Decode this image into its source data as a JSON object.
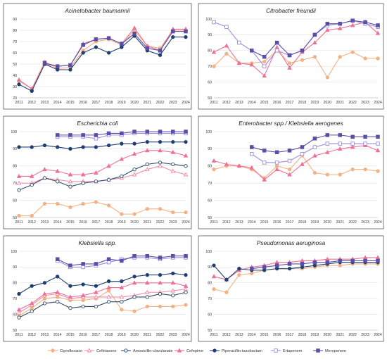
{
  "legend": [
    {
      "name": "Ciprofloxacin",
      "color": "#f4b183",
      "marker": "circle",
      "filled": true
    },
    {
      "name": "Ceftriaxone",
      "color": "#f08aa8",
      "marker": "triangle",
      "filled": false
    },
    {
      "name": "Amoxicillin-clavulanate",
      "color": "#2e4b6e",
      "marker": "circle",
      "filled": false
    },
    {
      "name": "Cefepime",
      "color": "#ef6f95",
      "marker": "triangle",
      "filled": true
    },
    {
      "name": "Piperacillin-tazobactam",
      "color": "#1f3f73",
      "marker": "circle",
      "filled": true
    },
    {
      "name": "Ertapenem",
      "color": "#9c8ce0",
      "marker": "square",
      "filled": false
    },
    {
      "name": "Meropenem",
      "color": "#5a4fa8",
      "marker": "square",
      "filled": true
    }
  ],
  "chart_data": [
    {
      "type": "line",
      "title": "Acinetobacter baumannii",
      "x": [
        2011,
        2012,
        2013,
        2014,
        2015,
        2016,
        2017,
        2018,
        2019,
        2020,
        2021,
        2022,
        2023,
        2024
      ],
      "ylim": [
        20,
        90
      ],
      "yticks": [
        20,
        30,
        40,
        50,
        60,
        70,
        80,
        90
      ],
      "series": [
        {
          "name": "Ciprofloxacin",
          "values": [
            35,
            28,
            52,
            46,
            47,
            62,
            70,
            72,
            67,
            80,
            66,
            64,
            80,
            80
          ]
        },
        {
          "name": "Ceftriaxone",
          "values": [
            null,
            null,
            null,
            null,
            null,
            null,
            null,
            null,
            null,
            null,
            null,
            null,
            null,
            null
          ]
        },
        {
          "name": "Amoxicillin-clavulanate",
          "values": [
            null,
            null,
            null,
            null,
            null,
            null,
            null,
            null,
            null,
            null,
            null,
            null,
            null,
            null
          ]
        },
        {
          "name": "Cefepime",
          "values": [
            36,
            28,
            50,
            48,
            49,
            68,
            72,
            73,
            68,
            82,
            66,
            62,
            81,
            81
          ]
        },
        {
          "name": "Piperacillin-tazobactam",
          "values": [
            32,
            26,
            50,
            45,
            45,
            60,
            65,
            60,
            65,
            75,
            62,
            58,
            74,
            74
          ]
        },
        {
          "name": "Ertapenem",
          "values": [
            null,
            null,
            null,
            null,
            null,
            null,
            null,
            null,
            null,
            null,
            null,
            null,
            null,
            null
          ]
        },
        {
          "name": "Meropenem",
          "values": [
            null,
            null,
            51,
            48,
            49,
            67,
            72,
            73,
            68,
            77,
            64,
            62,
            79,
            79
          ]
        }
      ]
    },
    {
      "type": "line",
      "title": "Citrobacter freundii",
      "x": [
        2011,
        2012,
        2013,
        2014,
        2015,
        2016,
        2017,
        2018,
        2019,
        2020,
        2021,
        2022,
        2023,
        2024
      ],
      "ylim": [
        50,
        100
      ],
      "yticks": [
        50,
        60,
        70,
        80,
        90,
        100
      ],
      "series": [
        {
          "name": "Ciprofloxacin",
          "values": [
            70,
            78,
            72,
            72,
            73,
            80,
            72,
            74,
            76,
            63,
            76,
            79,
            75,
            75
          ]
        },
        {
          "name": "Ceftriaxone",
          "values": [
            null,
            null,
            null,
            null,
            null,
            null,
            null,
            null,
            null,
            null,
            null,
            null,
            null,
            null
          ]
        },
        {
          "name": "Amoxicillin-clavulanate",
          "values": [
            null,
            null,
            null,
            null,
            null,
            null,
            null,
            null,
            null,
            null,
            null,
            null,
            null,
            null
          ]
        },
        {
          "name": "Cefepime",
          "values": [
            79,
            83,
            72,
            71,
            64,
            82,
            69,
            79,
            85,
            93,
            94,
            96,
            98,
            91
          ]
        },
        {
          "name": "Piperacillin-tazobactam",
          "values": [
            null,
            null,
            null,
            null,
            null,
            null,
            null,
            null,
            null,
            null,
            null,
            null,
            null,
            null
          ]
        },
        {
          "name": "Ertapenem",
          "values": [
            98,
            95,
            85,
            80,
            70,
            80,
            77,
            80,
            90,
            96,
            97,
            99,
            97,
            95
          ]
        },
        {
          "name": "Meropenem",
          "values": [
            null,
            null,
            null,
            80,
            76,
            85,
            77,
            80,
            90,
            97,
            97,
            99,
            98,
            96
          ]
        }
      ]
    },
    {
      "type": "line",
      "title": "Escherichia coli",
      "x": [
        2011,
        2012,
        2013,
        2014,
        2015,
        2016,
        2017,
        2018,
        2019,
        2020,
        2021,
        2022,
        2023,
        2024
      ],
      "ylim": [
        50,
        100
      ],
      "yticks": [
        50,
        60,
        70,
        80,
        90,
        100
      ],
      "series": [
        {
          "name": "Ciprofloxacin",
          "values": [
            51,
            51,
            58,
            58,
            56,
            58,
            59,
            57,
            52,
            52,
            55,
            55,
            53,
            53
          ]
        },
        {
          "name": "Ceftriaxone",
          "values": [
            70,
            70,
            73,
            72,
            71,
            71,
            71,
            72,
            73,
            75,
            78,
            80,
            77,
            75
          ]
        },
        {
          "name": "Amoxicillin-clavulanate",
          "values": [
            66,
            69,
            73,
            71,
            68,
            70,
            71,
            72,
            74,
            78,
            81,
            82,
            81,
            80
          ]
        },
        {
          "name": "Cefepime",
          "values": [
            74,
            74,
            78,
            77,
            75,
            75,
            76,
            80,
            84,
            87,
            89,
            89,
            88,
            86
          ]
        },
        {
          "name": "Piperacillin-tazobactam",
          "values": [
            91,
            91,
            92,
            91,
            90,
            91,
            91,
            92,
            93,
            93,
            94,
            94,
            94,
            94
          ]
        },
        {
          "name": "Ertapenem",
          "values": [
            null,
            null,
            null,
            97,
            97,
            97,
            96,
            98,
            98,
            99,
            99,
            99,
            99,
            99
          ]
        },
        {
          "name": "Meropenem",
          "values": [
            null,
            null,
            null,
            98,
            98,
            98,
            98,
            99,
            99,
            100,
            100,
            100,
            100,
            100
          ]
        }
      ]
    },
    {
      "type": "line",
      "title": "Enterobacter spp./ Klebsiella aerogenes",
      "x": [
        2011,
        2012,
        2013,
        2014,
        2015,
        2016,
        2017,
        2018,
        2019,
        2020,
        2021,
        2022,
        2023,
        2024
      ],
      "ylim": [
        50,
        100
      ],
      "yticks": [
        50,
        60,
        70,
        80,
        90,
        100
      ],
      "series": [
        {
          "name": "Ciprofloxacin",
          "values": [
            78,
            80,
            80,
            78,
            73,
            80,
            78,
            86,
            76,
            75,
            75,
            78,
            78,
            77
          ]
        },
        {
          "name": "Ceftriaxone",
          "values": [
            null,
            null,
            null,
            null,
            null,
            null,
            null,
            null,
            null,
            null,
            null,
            null,
            null,
            null
          ]
        },
        {
          "name": "Amoxicillin-clavulanate",
          "values": [
            null,
            null,
            null,
            null,
            null,
            null,
            null,
            null,
            null,
            null,
            null,
            null,
            null,
            null
          ]
        },
        {
          "name": "Cefepime",
          "values": [
            83,
            81,
            80,
            79,
            72,
            78,
            75,
            81,
            86,
            88,
            90,
            91,
            92,
            89
          ]
        },
        {
          "name": "Piperacillin-tazobactam",
          "values": [
            null,
            null,
            null,
            null,
            null,
            null,
            null,
            null,
            null,
            null,
            null,
            null,
            null,
            null
          ]
        },
        {
          "name": "Ertapenem",
          "values": [
            null,
            null,
            null,
            87,
            82,
            82,
            83,
            87,
            91,
            93,
            93,
            93,
            93,
            93
          ]
        },
        {
          "name": "Meropenem",
          "values": [
            null,
            null,
            null,
            91,
            89,
            88,
            89,
            91,
            96,
            98,
            98,
            97,
            97,
            97
          ]
        }
      ]
    },
    {
      "type": "line",
      "title": "Klebsiella spp.",
      "x": [
        2011,
        2012,
        2013,
        2014,
        2015,
        2016,
        2017,
        2018,
        2019,
        2020,
        2021,
        2022,
        2023,
        2024
      ],
      "ylim": [
        50,
        100
      ],
      "yticks": [
        50,
        60,
        70,
        80,
        90,
        100
      ],
      "series": [
        {
          "name": "Ciprofloxacin",
          "values": [
            59,
            64,
            70,
            71,
            69,
            69,
            70,
            75,
            63,
            62,
            65,
            65,
            65,
            66
          ]
        },
        {
          "name": "Ceftriaxone",
          "values": [
            61,
            66,
            72,
            73,
            70,
            71,
            71,
            71,
            71,
            72,
            74,
            74,
            75,
            76
          ]
        },
        {
          "name": "Amoxicillin-clavulanate",
          "values": [
            58,
            62,
            67,
            68,
            64,
            65,
            65,
            68,
            68,
            71,
            71,
            73,
            72,
            74
          ]
        },
        {
          "name": "Cefepime",
          "values": [
            63,
            67,
            73,
            74,
            71,
            72,
            74,
            77,
            77,
            80,
            80,
            80,
            80,
            78
          ]
        },
        {
          "name": "Piperacillin-tazobactam",
          "values": [
            73,
            78,
            80,
            84,
            78,
            79,
            78,
            81,
            81,
            84,
            85,
            85,
            86,
            85
          ]
        },
        {
          "name": "Ertapenem",
          "values": [
            null,
            null,
            null,
            94,
            90,
            90,
            91,
            93,
            95,
            96,
            96,
            95,
            96,
            96
          ]
        },
        {
          "name": "Meropenem",
          "values": [
            null,
            null,
            null,
            95,
            91,
            92,
            92,
            95,
            94,
            97,
            97,
            96,
            97,
            97
          ]
        }
      ]
    },
    {
      "type": "line",
      "title": "Pseudomonas aeruginosa",
      "x": [
        2011,
        2012,
        2013,
        2014,
        2015,
        2016,
        2017,
        2018,
        2019,
        2020,
        2021,
        2022,
        2023,
        2024
      ],
      "ylim": [
        50,
        100
      ],
      "yticks": [
        50,
        60,
        70,
        80,
        90,
        100
      ],
      "series": [
        {
          "name": "Ciprofloxacin",
          "values": [
            76,
            74,
            85,
            86,
            88,
            89,
            89,
            89,
            90,
            91,
            91,
            92,
            92,
            92
          ]
        },
        {
          "name": "Ceftriaxone",
          "values": [
            null,
            null,
            null,
            null,
            null,
            null,
            null,
            null,
            null,
            null,
            null,
            null,
            null,
            null
          ]
        },
        {
          "name": "Amoxicillin-clavulanate",
          "values": [
            null,
            null,
            null,
            null,
            null,
            null,
            null,
            null,
            null,
            null,
            null,
            null,
            null,
            null
          ]
        },
        {
          "name": "Cefepime",
          "values": [
            84,
            82,
            88,
            90,
            91,
            93,
            93,
            94,
            94,
            95,
            95,
            95,
            96,
            96
          ]
        },
        {
          "name": "Piperacillin-tazobactam",
          "values": [
            91,
            82,
            89,
            88,
            88,
            89,
            89,
            90,
            91,
            92,
            93,
            93,
            93,
            93
          ]
        },
        {
          "name": "Ertapenem",
          "values": [
            null,
            null,
            null,
            null,
            null,
            null,
            null,
            null,
            null,
            null,
            null,
            null,
            null,
            null
          ]
        },
        {
          "name": "Meropenem",
          "values": [
            null,
            null,
            null,
            89,
            90,
            91,
            92,
            92,
            93,
            93,
            94,
            94,
            94,
            94
          ]
        }
      ]
    }
  ]
}
